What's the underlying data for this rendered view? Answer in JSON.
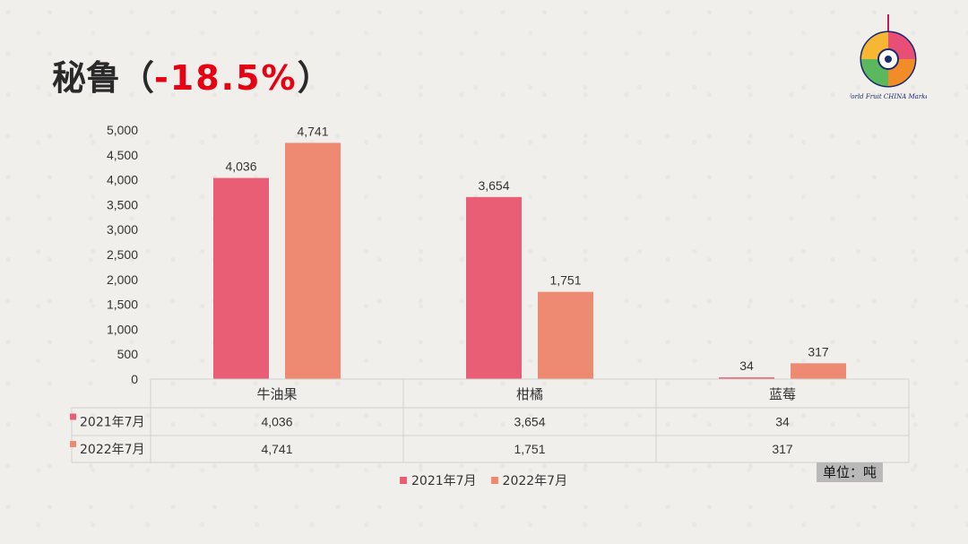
{
  "slide": {
    "title_main": "秘鲁（",
    "title_pct": "-18.5%",
    "title_close": "）",
    "unit_label": "单位：吨",
    "logo_text": "World Fruit CHINA Market"
  },
  "colors": {
    "series_2021": "#e95e75",
    "series_2022": "#ef8a72",
    "title_accent": "#e60012"
  },
  "chart_data": {
    "type": "bar",
    "categories": [
      "牛油果",
      "柑橘",
      "蓝莓"
    ],
    "series": [
      {
        "name": "2021年7月",
        "values": [
          4036,
          3654,
          34
        ],
        "labels": [
          "4,036",
          "3,654",
          "34"
        ]
      },
      {
        "name": "2022年7月",
        "values": [
          4741,
          1751,
          317
        ],
        "labels": [
          "4,741",
          "1,751",
          "317"
        ]
      }
    ],
    "ylim": [
      0,
      5000
    ],
    "yticks": [
      0,
      500,
      1000,
      1500,
      2000,
      2500,
      3000,
      3500,
      4000,
      4500,
      5000
    ],
    "ytick_labels": [
      "0",
      "500",
      "1,000",
      "1,500",
      "2,000",
      "2,500",
      "3,000",
      "3,500",
      "4,000",
      "4,500",
      "5,000"
    ],
    "data_table": true,
    "legend_position": "bottom",
    "grid": false
  }
}
